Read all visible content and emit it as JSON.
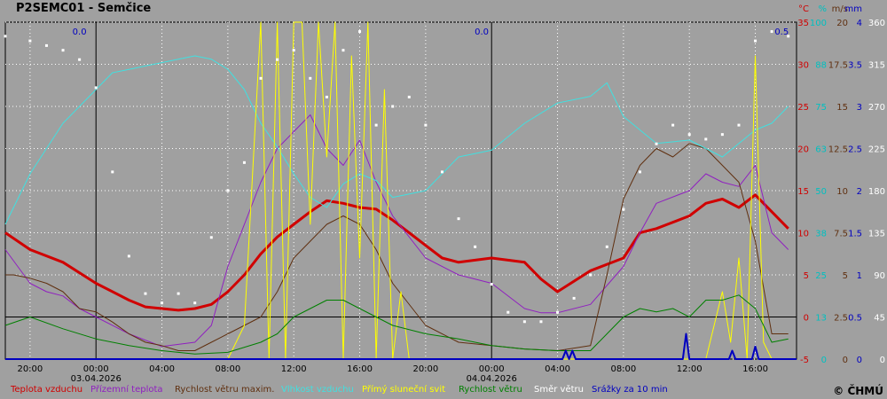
{
  "station_title": "P2SEMC01 - Semčice",
  "copyright": "© ČHMÚ",
  "chart_data": {
    "type": "line",
    "title": "P2SEMC01 - Semčice",
    "x_tick_labels": [
      "20:00",
      "00:00",
      "04:00",
      "08:00",
      "12:00",
      "16:00",
      "20:00",
      "00:00",
      "04:00",
      "08:00",
      "12:00",
      "16:00"
    ],
    "x_tick_hours": [
      -4,
      0,
      4,
      8,
      12,
      16,
      20,
      24,
      28,
      32,
      36,
      40
    ],
    "date_labels": [
      {
        "hour": 0,
        "text": "03.04.2026"
      },
      {
        "hour": 24,
        "text": "04.04.2026"
      }
    ],
    "x_range_hours": [
      -5.5,
      42.5
    ],
    "grid": true,
    "precip_sum_labels": [
      {
        "hour": -1.0,
        "text": "0.0"
      },
      {
        "hour": 23.4,
        "text": "0.0"
      },
      {
        "hour": 41.6,
        "text": "0.5"
      }
    ],
    "right_axes": [
      {
        "unit": "°C",
        "color": "#d00000",
        "ticks": [
          "35",
          "30",
          "25",
          "20",
          "15",
          "10",
          "5",
          "0",
          "-5"
        ]
      },
      {
        "unit": "%",
        "color": "#00c0c0",
        "ticks": [
          "100",
          "88",
          "75",
          "63",
          "50",
          "38",
          "25",
          "13",
          "0"
        ]
      },
      {
        "unit": "m/s",
        "color": "#603010",
        "ticks": [
          "20",
          "17.5",
          "15",
          "12.5",
          "10",
          "7.5",
          "5",
          "2.5",
          "0"
        ]
      },
      {
        "unit": "mm",
        "color": "#0000c0",
        "ticks": [
          "4",
          "3.5",
          "3",
          "2.5",
          "2",
          "1.5",
          "1",
          "0.5",
          "0"
        ]
      },
      {
        "unit": "",
        "color": "#ffffff",
        "ticks": [
          "360",
          "315",
          "270",
          "225",
          "180",
          "135",
          "90",
          "45",
          "0"
        ]
      }
    ],
    "series": [
      {
        "name": "Teplota vzduchu",
        "color": "#d00000",
        "unit": "°C",
        "x": [
          -5.5,
          -4,
          -2,
          0,
          2,
          3,
          4,
          5,
          6,
          7,
          8,
          9,
          10,
          11,
          12,
          13,
          14,
          15,
          16,
          17,
          18,
          19,
          20,
          21,
          22,
          24,
          26,
          27,
          28,
          30,
          32,
          33,
          34,
          36,
          37,
          38,
          39,
          40,
          41,
          42
        ],
        "values": [
          10,
          8,
          6.5,
          4,
          2,
          1.2,
          1,
          0.8,
          1,
          1.5,
          3,
          5,
          7.5,
          9.5,
          11,
          12.5,
          13.8,
          13.5,
          13,
          12.8,
          11.5,
          10,
          8.5,
          7,
          6.5,
          7,
          6.5,
          4.5,
          3,
          5.5,
          7,
          10,
          10.5,
          12,
          13.5,
          14,
          13,
          14.5,
          12.5,
          10.5
        ]
      },
      {
        "name": "Přízemní teplota",
        "color": "#9020c0",
        "unit": "°C",
        "x": [
          -5.5,
          -4,
          -3,
          -2,
          -1,
          0,
          2,
          4,
          6,
          7,
          8,
          9,
          10,
          11,
          12,
          13,
          14,
          15,
          16,
          17,
          18,
          20,
          22,
          24,
          26,
          27,
          28,
          30,
          32,
          33,
          34,
          36,
          37,
          38,
          39,
          40,
          41,
          42
        ],
        "values": [
          8,
          4,
          3,
          2.5,
          1,
          0,
          -2,
          -3.5,
          -3,
          -1,
          6,
          11,
          16,
          20,
          22,
          24,
          20,
          18,
          21,
          16,
          12,
          7,
          5,
          4,
          1,
          0.5,
          0.5,
          1.5,
          6,
          10,
          13.5,
          15,
          17,
          16,
          15.5,
          18,
          10,
          8
        ]
      },
      {
        "name": "Rychlost větru maxim.",
        "color": "#603010",
        "unit": "m/s",
        "x": [
          -5.5,
          -5,
          -4,
          -3,
          -2,
          -1,
          0,
          1,
          2,
          3,
          4,
          5,
          6,
          7,
          8,
          9,
          10,
          11,
          12,
          13,
          14,
          15,
          16,
          17,
          18,
          20,
          22,
          24,
          26,
          28,
          30,
          31,
          32,
          33,
          34,
          35,
          36,
          37,
          38,
          39,
          40,
          41,
          42
        ],
        "values": [
          5,
          5,
          4.8,
          4.5,
          4,
          3,
          2.8,
          2.2,
          1.5,
          1,
          0.8,
          0.5,
          0.5,
          1,
          1.5,
          2,
          2.5,
          4,
          6,
          7,
          8,
          8.5,
          8,
          6.5,
          4.5,
          2,
          1,
          0.8,
          0.6,
          0.5,
          0.8,
          5,
          9.5,
          11.5,
          12.5,
          12,
          12.8,
          12.5,
          11.5,
          10.5,
          7,
          1.5,
          1.5
        ]
      },
      {
        "name": "Vlhkost vzduchu",
        "color": "#40e0e0",
        "unit": "%",
        "x": [
          -5.5,
          -4,
          -2,
          0,
          1,
          2,
          3,
          4,
          5,
          6,
          7,
          8,
          9,
          10,
          11,
          12,
          13,
          14,
          15,
          16,
          17,
          18,
          20,
          22,
          24,
          26,
          28,
          30,
          31,
          32,
          34,
          36,
          38,
          40,
          41,
          42
        ],
        "values": [
          40,
          55,
          70,
          80,
          85,
          86,
          87,
          88,
          89,
          90,
          89,
          86,
          80,
          70,
          63,
          55,
          48,
          45,
          52,
          55,
          53,
          48,
          50,
          60,
          62,
          70,
          76,
          78,
          82,
          72,
          64,
          65,
          60,
          68,
          70,
          75
        ]
      },
      {
        "name": "Přímý sluneční svit",
        "color": "#ffff00",
        "unit": "%",
        "x": [
          -5.5,
          6,
          8,
          9,
          10,
          10.5,
          11,
          11.5,
          12,
          12.5,
          13,
          13.5,
          14,
          14.5,
          15,
          15.5,
          16,
          16.5,
          17,
          17.5,
          18,
          18.5,
          19,
          35,
          37,
          38,
          38.5,
          39,
          39.5,
          40,
          40.5,
          41,
          42
        ],
        "values": [
          0,
          0,
          0,
          10,
          100,
          0,
          100,
          0,
          100,
          100,
          40,
          100,
          60,
          100,
          0,
          90,
          30,
          100,
          0,
          80,
          0,
          20,
          0,
          0,
          0,
          20,
          5,
          30,
          0,
          90,
          5,
          0,
          0
        ]
      },
      {
        "name": "Rychlost větru",
        "color": "#008000",
        "unit": "m/s",
        "x": [
          -5.5,
          -4,
          -2,
          0,
          2,
          4,
          6,
          8,
          10,
          11,
          12,
          13,
          14,
          15,
          16,
          17,
          18,
          20,
          22,
          24,
          26,
          28,
          30,
          31,
          32,
          33,
          34,
          35,
          36,
          37,
          38,
          39,
          40,
          41,
          42
        ],
        "values": [
          2,
          2.5,
          1.8,
          1.2,
          0.8,
          0.5,
          0.3,
          0.4,
          1,
          1.5,
          2.5,
          3,
          3.5,
          3.5,
          3,
          2.5,
          2,
          1.5,
          1.2,
          0.8,
          0.6,
          0.5,
          0.5,
          1.5,
          2.5,
          3,
          2.8,
          3,
          2.5,
          3.5,
          3.5,
          3.8,
          3,
          1,
          1.2
        ]
      },
      {
        "name": "Směr větru",
        "color": "#ffffff",
        "unit": "°",
        "x": [
          -5.5,
          -4,
          -3,
          -2,
          -1,
          0,
          1,
          2,
          3,
          4,
          5,
          6,
          7,
          8,
          9,
          10,
          11,
          12,
          13,
          14,
          15,
          16,
          17,
          18,
          19,
          20,
          21,
          22,
          23,
          24,
          25,
          26,
          27,
          28,
          29,
          30,
          31,
          32,
          33,
          34,
          35,
          36,
          37,
          38,
          39,
          40,
          41,
          42
        ],
        "values": [
          345,
          340,
          335,
          330,
          320,
          290,
          200,
          110,
          70,
          60,
          70,
          60,
          130,
          180,
          210,
          300,
          320,
          330,
          300,
          280,
          330,
          350,
          250,
          270,
          280,
          250,
          200,
          150,
          120,
          80,
          50,
          40,
          40,
          50,
          65,
          90,
          120,
          160,
          200,
          230,
          250,
          240,
          235,
          240,
          250,
          340,
          350,
          345
        ]
      },
      {
        "name": "Srážky za 10 min",
        "color": "#0000c0",
        "unit": "mm",
        "x": [
          -5.5,
          28.3,
          28.5,
          28.7,
          28.9,
          29.1,
          35.6,
          35.8,
          36.0,
          38.4,
          38.6,
          38.8,
          39.8,
          40.0,
          40.2,
          42.5
        ],
        "values": [
          0,
          0,
          0.1,
          0,
          0.1,
          0,
          0,
          0.3,
          0,
          0,
          0.1,
          0,
          0,
          0.15,
          0,
          0
        ]
      }
    ]
  }
}
